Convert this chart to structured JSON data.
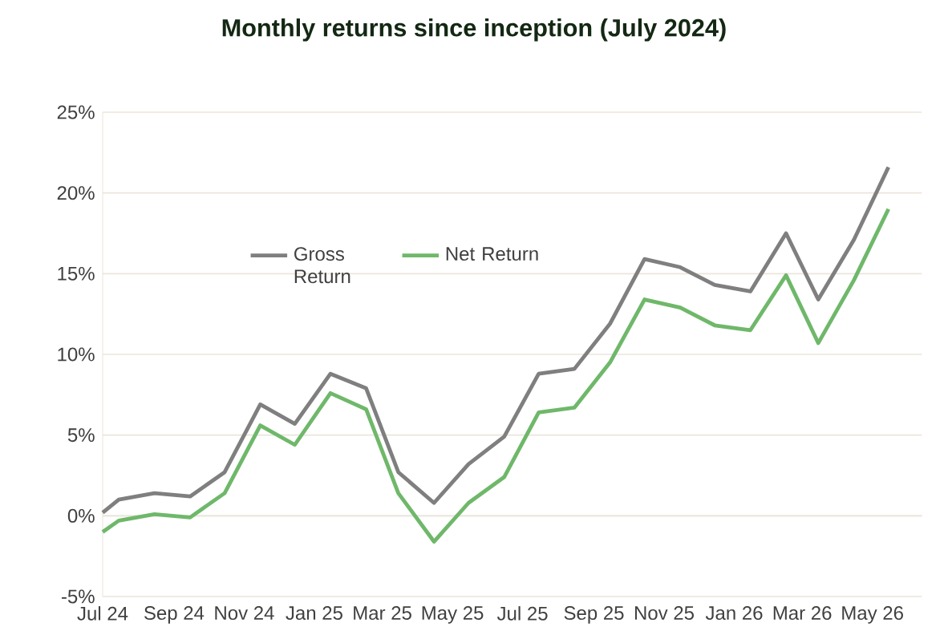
{
  "chart_data": {
    "type": "line",
    "title": "Monthly returns since inception (July 2024)",
    "x": [
      "2024-07-01",
      "2024-07-15",
      "2024-08-15",
      "2024-09-15",
      "2024-10-15",
      "2024-11-15",
      "2024-12-15",
      "2025-01-15",
      "2025-02-15",
      "2025-03-15",
      "2025-04-15",
      "2025-05-15",
      "2025-06-15",
      "2025-07-15",
      "2025-08-15",
      "2025-09-15",
      "2025-10-15",
      "2025-11-15",
      "2025-12-15",
      "2026-01-15",
      "2026-02-15",
      "2026-03-15",
      "2026-04-15",
      "2026-05-15"
    ],
    "series": [
      {
        "name": "Gross Return",
        "color": "#7f7f7f",
        "values": [
          0.2,
          1.0,
          1.4,
          1.2,
          2.7,
          6.9,
          5.7,
          8.8,
          7.9,
          2.7,
          0.8,
          3.2,
          4.9,
          8.8,
          9.1,
          11.9,
          15.9,
          15.4,
          14.3,
          13.9,
          17.5,
          13.4,
          17.1,
          21.6
        ]
      },
      {
        "name": "Net Return",
        "color": "#6fb86a",
        "values": [
          -1.0,
          -0.3,
          0.1,
          -0.1,
          1.4,
          5.6,
          4.4,
          7.6,
          6.6,
          1.4,
          -1.6,
          0.8,
          2.4,
          6.4,
          6.7,
          9.5,
          13.4,
          12.9,
          11.8,
          11.5,
          14.9,
          10.7,
          14.6,
          19.0
        ]
      }
    ],
    "xlim": [
      "2024-07-01",
      "2026-06-13"
    ],
    "xticks": [
      {
        "value": "2024-07-01",
        "label": "Jul 24"
      },
      {
        "value": "2024-09-01",
        "label": "Sep 24"
      },
      {
        "value": "2024-11-01",
        "label": "Nov 24"
      },
      {
        "value": "2025-01-01",
        "label": "Jan 25"
      },
      {
        "value": "2025-03-01",
        "label": "Mar 25"
      },
      {
        "value": "2025-05-01",
        "label": "May 25"
      },
      {
        "value": "2025-07-01",
        "label": "Jul 25"
      },
      {
        "value": "2025-09-01",
        "label": "Sep 25"
      },
      {
        "value": "2025-11-01",
        "label": "Nov 25"
      },
      {
        "value": "2026-01-01",
        "label": "Jan 26"
      },
      {
        "value": "2026-03-01",
        "label": "Mar 26"
      },
      {
        "value": "2026-05-01",
        "label": "May 26"
      }
    ],
    "ylim": [
      -5,
      25
    ],
    "yticks": [
      {
        "value": -5,
        "label": "-5%"
      },
      {
        "value": 0,
        "label": "0%"
      },
      {
        "value": 5,
        "label": "5%"
      },
      {
        "value": 10,
        "label": "10%"
      },
      {
        "value": 15,
        "label": "15%"
      },
      {
        "value": 20,
        "label": "20%"
      },
      {
        "value": 25,
        "label": "25%"
      }
    ],
    "grid": "y",
    "legend": "top left",
    "marker": "none",
    "line_style": "solid"
  }
}
